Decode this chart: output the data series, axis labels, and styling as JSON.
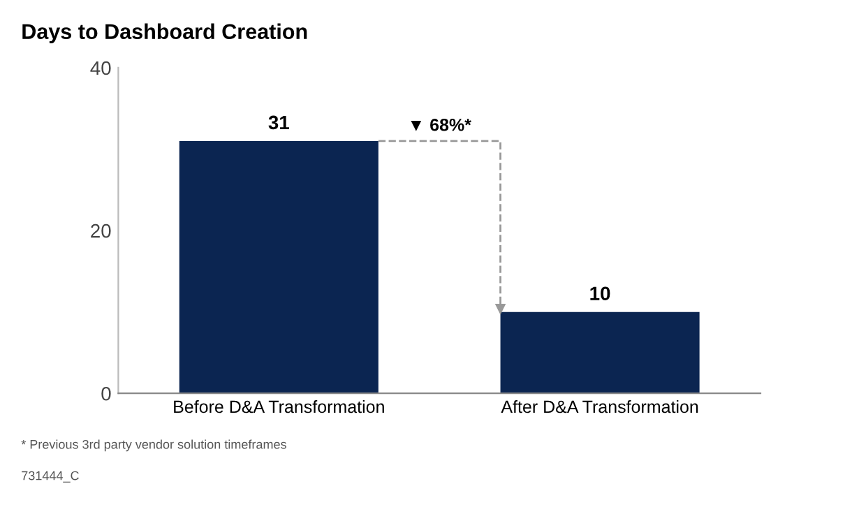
{
  "chart_data": {
    "type": "bar",
    "title": "Days to Dashboard Creation",
    "categories": [
      "Before D&A Transformation",
      "After D&A Transformation"
    ],
    "values": [
      31,
      10
    ],
    "color": "#0b2551",
    "data_labels": true,
    "ylim": [
      0,
      40
    ],
    "yticks": [
      0,
      20,
      40
    ],
    "grid": false,
    "legend": false,
    "annotations": [
      "▼ 68%*",
      "* Previous 3rd party vendor solution timeframes",
      "731444_C"
    ]
  }
}
